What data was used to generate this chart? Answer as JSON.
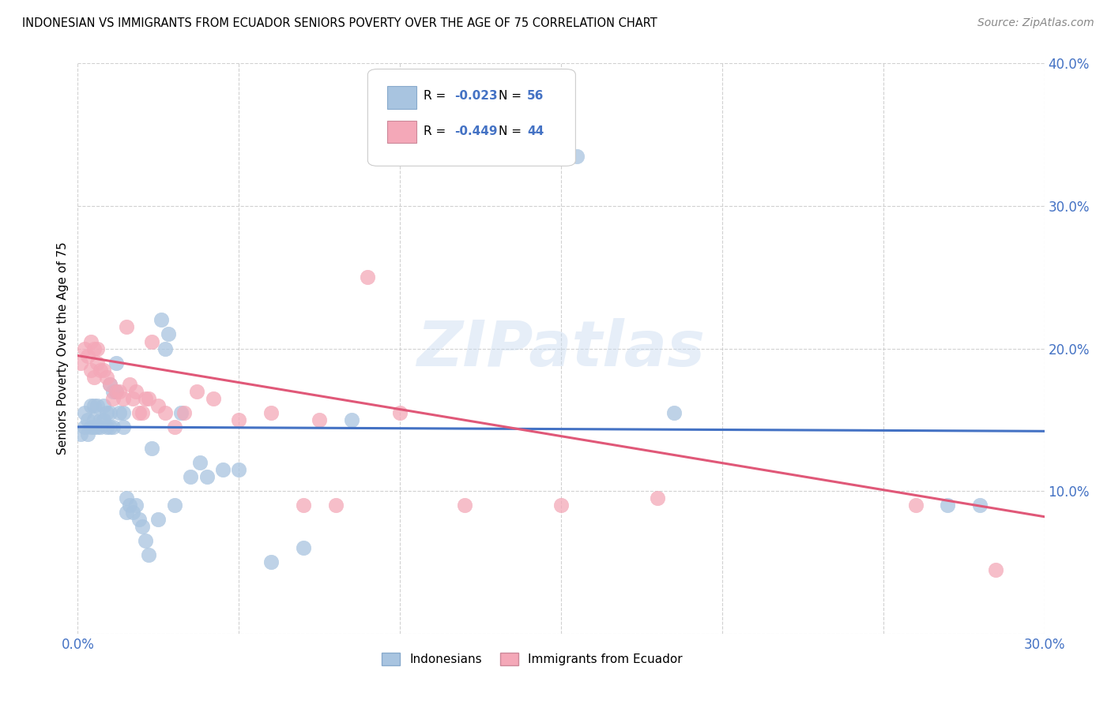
{
  "title": "INDONESIAN VS IMMIGRANTS FROM ECUADOR SENIORS POVERTY OVER THE AGE OF 75 CORRELATION CHART",
  "source": "Source: ZipAtlas.com",
  "ylabel": "Seniors Poverty Over the Age of 75",
  "xlim": [
    0.0,
    0.3
  ],
  "ylim": [
    0.0,
    0.4
  ],
  "xtick_pos": [
    0.0,
    0.05,
    0.1,
    0.15,
    0.2,
    0.25,
    0.3
  ],
  "ytick_pos": [
    0.0,
    0.1,
    0.2,
    0.3,
    0.4
  ],
  "xtick_labels": [
    "0.0%",
    "",
    "",
    "",
    "",
    "",
    "30.0%"
  ],
  "ytick_labels": [
    "",
    "10.0%",
    "20.0%",
    "30.0%",
    "40.0%"
  ],
  "R_indonesian": -0.023,
  "N_indonesian": 56,
  "R_ecuador": -0.449,
  "N_ecuador": 44,
  "color_indonesian": "#a8c4e0",
  "color_ecuador": "#f4a8b8",
  "line_color_indonesian": "#4472c4",
  "line_color_ecuador": "#e05878",
  "legend_label_indonesian": "Indonesians",
  "legend_label_ecuador": "Immigrants from Ecuador",
  "watermark": "ZIPatlas",
  "ind_line_y0": 0.145,
  "ind_line_y1": 0.142,
  "ecu_line_y0": 0.195,
  "ecu_line_y1": 0.082,
  "indonesian_x": [
    0.001,
    0.002,
    0.002,
    0.003,
    0.003,
    0.004,
    0.004,
    0.005,
    0.005,
    0.005,
    0.006,
    0.006,
    0.007,
    0.007,
    0.008,
    0.008,
    0.009,
    0.009,
    0.01,
    0.01,
    0.01,
    0.011,
    0.011,
    0.012,
    0.012,
    0.013,
    0.014,
    0.014,
    0.015,
    0.015,
    0.016,
    0.017,
    0.018,
    0.019,
    0.02,
    0.021,
    0.022,
    0.023,
    0.025,
    0.026,
    0.027,
    0.028,
    0.03,
    0.032,
    0.035,
    0.038,
    0.04,
    0.045,
    0.05,
    0.06,
    0.07,
    0.085,
    0.155,
    0.185,
    0.27,
    0.28
  ],
  "indonesian_y": [
    0.14,
    0.145,
    0.155,
    0.14,
    0.15,
    0.145,
    0.16,
    0.145,
    0.15,
    0.16,
    0.145,
    0.16,
    0.15,
    0.145,
    0.15,
    0.16,
    0.145,
    0.155,
    0.145,
    0.155,
    0.175,
    0.145,
    0.17,
    0.19,
    0.17,
    0.155,
    0.155,
    0.145,
    0.085,
    0.095,
    0.09,
    0.085,
    0.09,
    0.08,
    0.075,
    0.065,
    0.055,
    0.13,
    0.08,
    0.22,
    0.2,
    0.21,
    0.09,
    0.155,
    0.11,
    0.12,
    0.11,
    0.115,
    0.115,
    0.05,
    0.06,
    0.15,
    0.335,
    0.155,
    0.09,
    0.09
  ],
  "ecuador_x": [
    0.001,
    0.002,
    0.003,
    0.004,
    0.004,
    0.005,
    0.005,
    0.006,
    0.006,
    0.007,
    0.008,
    0.009,
    0.01,
    0.011,
    0.012,
    0.013,
    0.014,
    0.015,
    0.016,
    0.017,
    0.018,
    0.019,
    0.02,
    0.021,
    0.022,
    0.023,
    0.025,
    0.027,
    0.03,
    0.033,
    0.037,
    0.042,
    0.05,
    0.06,
    0.07,
    0.075,
    0.08,
    0.09,
    0.1,
    0.12,
    0.15,
    0.18,
    0.26,
    0.285
  ],
  "ecuador_y": [
    0.19,
    0.2,
    0.195,
    0.185,
    0.205,
    0.18,
    0.2,
    0.19,
    0.2,
    0.185,
    0.185,
    0.18,
    0.175,
    0.165,
    0.17,
    0.17,
    0.165,
    0.215,
    0.175,
    0.165,
    0.17,
    0.155,
    0.155,
    0.165,
    0.165,
    0.205,
    0.16,
    0.155,
    0.145,
    0.155,
    0.17,
    0.165,
    0.15,
    0.155,
    0.09,
    0.15,
    0.09,
    0.25,
    0.155,
    0.09,
    0.09,
    0.095,
    0.09,
    0.045
  ]
}
